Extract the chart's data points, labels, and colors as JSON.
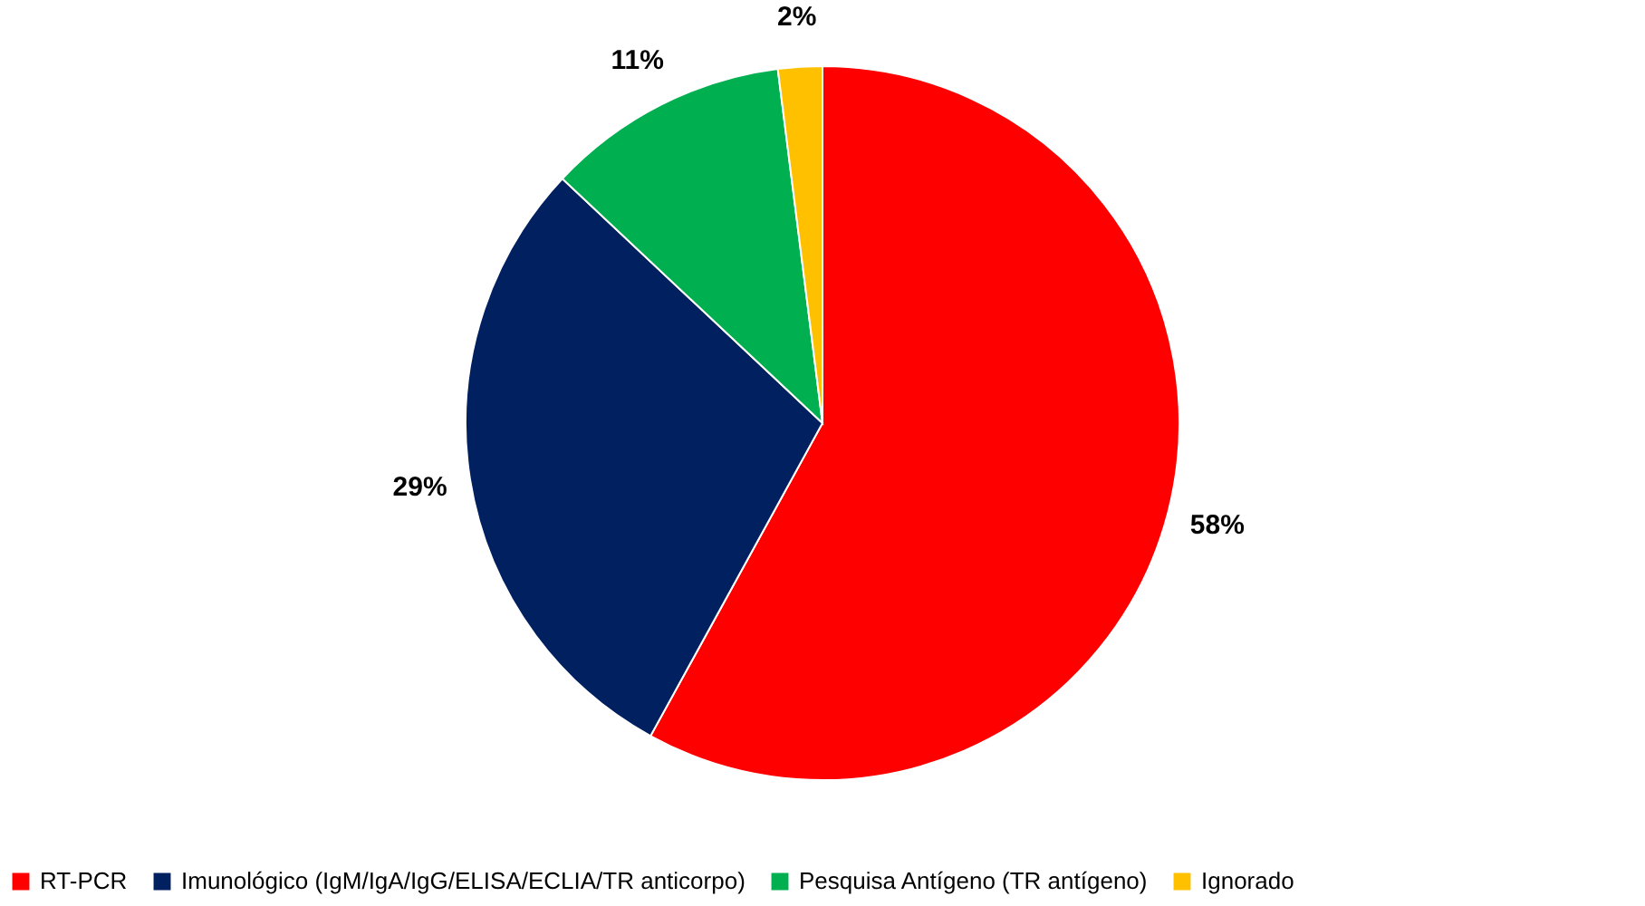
{
  "chart_data": {
    "type": "pie",
    "categories": [
      "RT-PCR",
      "Imunológico (IgM/IgA/IgG/ELISA/ECLIA/TR anticorpo)",
      "Pesquisa Antígeno (TR antígeno)",
      "Ignorado"
    ],
    "values": [
      58,
      29,
      11,
      2
    ],
    "value_labels": [
      "58%",
      "29%",
      "11%",
      "2%"
    ],
    "colors": [
      "#ff0000",
      "#002060",
      "#00b050",
      "#ffc000"
    ],
    "legend": "bottom"
  }
}
